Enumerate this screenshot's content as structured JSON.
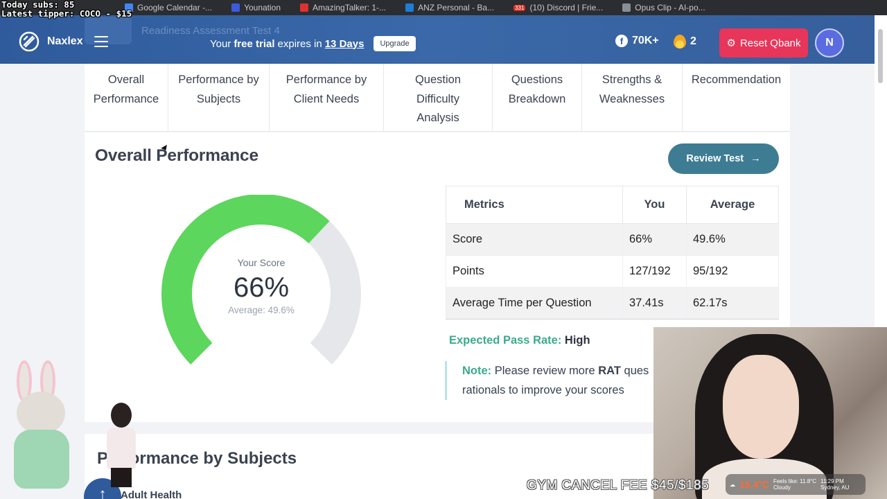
{
  "stream_overlay": {
    "subs": "Today subs: 85",
    "tipper": "Latest tipper: COCO - $15",
    "gym_fee": "GYM CANCEL FEE $45/$185",
    "weather_temp": "15.4°C",
    "weather_cond": "Cloudy",
    "weather_feels": "Feels like: 11.8°C",
    "time": "11:29 PM",
    "location": "Sydney, AU"
  },
  "bookmarks": [
    {
      "label": "Google Calendar -...",
      "color": "#4285f4"
    },
    {
      "label": "Younation",
      "color": "#3b5bdb"
    },
    {
      "label": "AmazingTalker: 1-...",
      "color": "#e03131"
    },
    {
      "label": "ANZ Personal - Ba...",
      "color": "#1c7ed6"
    },
    {
      "label": "(10) Discord | Frie...",
      "color": "#5865f2",
      "badge": "331"
    },
    {
      "label": "Opus Clip - AI-po...",
      "color": "#868e96"
    }
  ],
  "header": {
    "ghost_title": "Readiness Assessment Test 4",
    "brand": "Naxlex",
    "trial_prefix": "Your",
    "trial_bold": "free trial",
    "trial_mid": "expires in",
    "trial_days": "13 Days",
    "upgrade": "Upgrade",
    "facebook_count": "70K+",
    "streak": "2",
    "reset": "Reset Qbank",
    "avatar": "N"
  },
  "tabs": [
    "Overall Performance",
    "Performance by Subjects",
    "Performance by Client Needs",
    "Question Difficulty Analysis",
    "Questions Breakdown",
    "Strengths & Weaknesses",
    "Recommendation"
  ],
  "overall": {
    "title": "Overall Performance",
    "review_button": "Review Test",
    "gauge": {
      "label": "Your Score",
      "value": "66%",
      "average": "Average: 49.6%",
      "score_fraction": 0.66,
      "fill_color": "#5cd65c",
      "track_color": "#e5e7eb"
    },
    "table": {
      "headers": [
        "Metrics",
        "You",
        "Average"
      ],
      "rows": [
        [
          "Score",
          "66%",
          "49.6%"
        ],
        [
          "Points",
          "127/192",
          "95/192"
        ],
        [
          "Average Time per Question",
          "37.41s",
          "62.17s"
        ]
      ]
    },
    "pass_label": "Expected Pass Rate:",
    "pass_value": "High",
    "note_label": "Note:",
    "note_pre": "Please review more",
    "note_bold": "RAT",
    "note_post": "ques",
    "note_line2": "rationals to improve your scores"
  },
  "subjects": {
    "title": "Performance by Subjects",
    "first_item": "Adult Health"
  }
}
